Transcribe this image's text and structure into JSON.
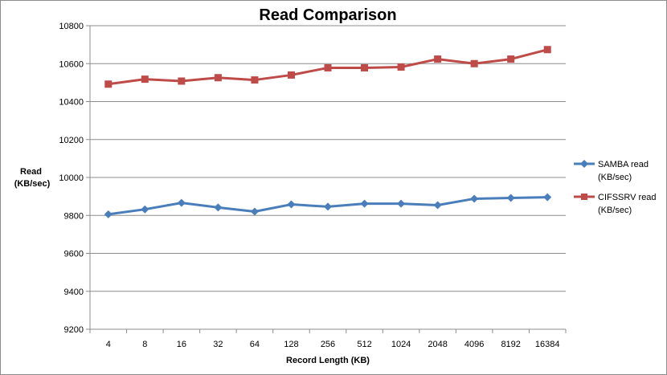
{
  "chart_data": {
    "type": "line",
    "title": "Read Comparison",
    "xlabel": "Record Length (KB)",
    "ylabel_line1": "Read",
    "ylabel_line2": "(KB/sec)",
    "categories": [
      "4",
      "8",
      "16",
      "32",
      "64",
      "128",
      "256",
      "512",
      "1024",
      "2048",
      "4096",
      "8192",
      "16384"
    ],
    "ylim": [
      9200,
      10800
    ],
    "yticks": [
      9200,
      9400,
      9600,
      9800,
      10000,
      10200,
      10400,
      10600,
      10800
    ],
    "grid": "horizontal",
    "legend_position": "right",
    "series": [
      {
        "name_line1": "SAMBA read",
        "name_line2": "(KB/sec)",
        "color": "#4a7ebb",
        "marker": "diamond",
        "values": [
          9806,
          9832,
          9866,
          9842,
          9820,
          9858,
          9846,
          9862,
          9862,
          9854,
          9888,
          9892,
          9896
        ]
      },
      {
        "name_line1": "CIFSSRV read",
        "name_line2": "(KB/sec)",
        "color": "#be4b48",
        "marker": "square",
        "values": [
          10492,
          10518,
          10508,
          10526,
          10514,
          10540,
          10578,
          10578,
          10582,
          10624,
          10600,
          10624,
          10674
        ]
      }
    ]
  }
}
